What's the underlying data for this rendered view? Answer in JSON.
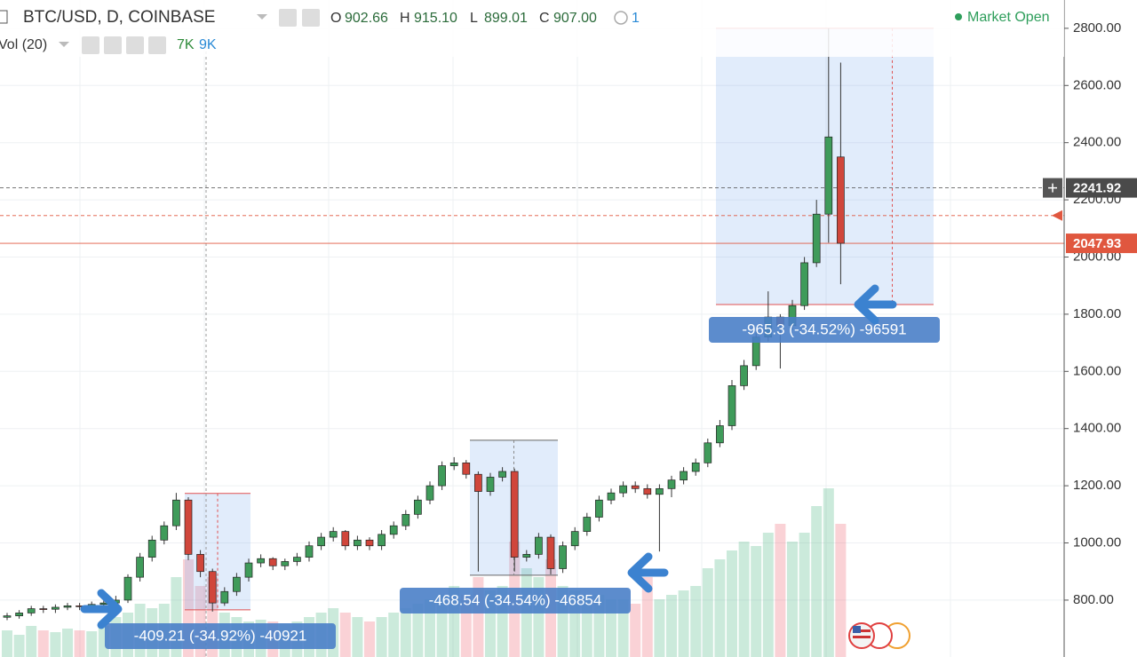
{
  "header": {
    "symbol": "BTC/USD, D, COINBASE",
    "o_label": "O",
    "o": "902.66",
    "h_label": "H",
    "h": "915.10",
    "l_label": "L",
    "l": "899.01",
    "c_label": "C",
    "c": "907.00",
    "alerts": "1",
    "status": "Market Open",
    "volume_study": "Vol (20)",
    "volume_value": "7K",
    "volume_ma": "9K"
  },
  "chart_data": {
    "type": "candlestick",
    "open": [
      740,
      745,
      755,
      770,
      768,
      775,
      780,
      778,
      785,
      790,
      800,
      880,
      950,
      1010,
      1060,
      1150,
      960,
      900,
      790,
      830,
      880,
      930,
      945,
      920,
      935,
      950,
      990,
      1020,
      1040,
      990,
      1010,
      990,
      1030,
      1060,
      1100,
      1150,
      1200,
      1270,
      1280,
      1240,
      1180,
      1230,
      1250,
      950,
      960,
      1020,
      910,
      990,
      1040,
      1090,
      1150,
      1175,
      1200,
      1190,
      1170,
      1190,
      1220,
      1250,
      1280,
      1350,
      1410,
      1550,
      1620,
      1720,
      1790,
      1760,
      1830,
      1980,
      2150,
      2350
    ],
    "high": [
      755,
      765,
      780,
      780,
      785,
      790,
      790,
      795,
      800,
      815,
      890,
      965,
      1025,
      1075,
      1175,
      1160,
      975,
      910,
      845,
      895,
      945,
      960,
      950,
      945,
      965,
      1005,
      1035,
      1055,
      1045,
      1025,
      1020,
      1045,
      1075,
      1115,
      1165,
      1215,
      1285,
      1300,
      1290,
      1250,
      1245,
      1265,
      1260,
      975,
      1035,
      1030,
      1005,
      1055,
      1105,
      1165,
      1190,
      1215,
      1215,
      1205,
      1205,
      1235,
      1265,
      1295,
      1365,
      1430,
      1570,
      1640,
      1740,
      1880,
      1800,
      1850,
      2000,
      2200,
      2800,
      2680
    ],
    "low": [
      730,
      735,
      745,
      755,
      755,
      765,
      765,
      765,
      775,
      780,
      790,
      865,
      935,
      995,
      1045,
      940,
      880,
      760,
      780,
      815,
      865,
      915,
      905,
      905,
      920,
      935,
      975,
      1005,
      975,
      975,
      975,
      975,
      1015,
      1045,
      1085,
      1135,
      1185,
      1255,
      1225,
      900,
      1165,
      1215,
      900,
      935,
      945,
      890,
      895,
      975,
      1025,
      1075,
      1135,
      1160,
      1175,
      1155,
      970,
      1160,
      1205,
      1235,
      1265,
      1335,
      1395,
      1535,
      1605,
      1705,
      1610,
      1745,
      1815,
      1965,
      2050,
      1905
    ],
    "close": [
      745,
      755,
      770,
      768,
      775,
      780,
      778,
      785,
      790,
      800,
      880,
      950,
      1010,
      1060,
      1150,
      960,
      900,
      790,
      830,
      880,
      930,
      945,
      920,
      935,
      950,
      990,
      1020,
      1040,
      990,
      1010,
      990,
      1030,
      1060,
      1100,
      1150,
      1200,
      1270,
      1280,
      1240,
      1180,
      1230,
      1250,
      950,
      960,
      1020,
      910,
      990,
      1040,
      1090,
      1150,
      1175,
      1200,
      1190,
      1170,
      1190,
      1220,
      1250,
      1280,
      1350,
      1410,
      1550,
      1620,
      1720,
      1790,
      1760,
      1830,
      1980,
      2150,
      2420,
      2048
    ],
    "volume": [
      3000,
      2500,
      3500,
      3000,
      2800,
      3200,
      3000,
      2900,
      3500,
      4500,
      5000,
      6000,
      5500,
      6000,
      9000,
      11000,
      8000,
      9000,
      5000,
      4500,
      4000,
      4200,
      4000,
      3800,
      4000,
      4500,
      5000,
      5500,
      5000,
      4500,
      4000,
      4500,
      5000,
      5500,
      6000,
      6500,
      7000,
      8000,
      7000,
      9000,
      7500,
      8000,
      13000,
      10000,
      9000,
      11000,
      8000,
      7500,
      7000,
      7000,
      6500,
      6500,
      6000,
      9000,
      6500,
      7000,
      7500,
      8000,
      10000,
      11000,
      12000,
      13000,
      12500,
      14000,
      15000,
      13000,
      14000,
      17000,
      19000,
      15000
    ],
    "vlim": [
      0,
      20000
    ],
    "up_color": "#3f9b5a",
    "down_color": "#d0463b",
    "ylim": [
      601,
      2899
    ],
    "yticks": [
      {
        "value": 800,
        "label": "800.00"
      },
      {
        "value": 1000,
        "label": "1000.00"
      },
      {
        "value": 1200,
        "label": "1200.00"
      },
      {
        "value": 1400,
        "label": "1400.00"
      },
      {
        "value": 1600,
        "label": "1600.00"
      },
      {
        "value": 1800,
        "label": "1800.00"
      },
      {
        "value": 2000,
        "label": "2000.00"
      },
      {
        "value": 2200,
        "label": "2200.00"
      },
      {
        "value": 2400,
        "label": "2400.00"
      },
      {
        "value": 2600,
        "label": "2600.00"
      },
      {
        "value": 2800,
        "label": "2800.00"
      }
    ],
    "grid": true,
    "price_lines": [
      {
        "value": 2241.92,
        "color": "#4a4a4a",
        "dashed": true,
        "tag": true
      },
      {
        "value": 2047.93,
        "color": "#e0573f",
        "dashed": false,
        "tag": true
      },
      {
        "value": 2145,
        "color": "#e0573f",
        "dashed": true,
        "tag": false
      }
    ],
    "measures": [
      {
        "top": 1173,
        "bottom": 766,
        "label": "-409.21 (-34.92%) -40921"
      },
      {
        "top": 1359,
        "bottom": 887,
        "label": "-468.54 (-34.54%) -46854"
      },
      {
        "top": 2800,
        "bottom": 1834,
        "label": "-965.3 (-34.52%) -96591"
      }
    ]
  }
}
